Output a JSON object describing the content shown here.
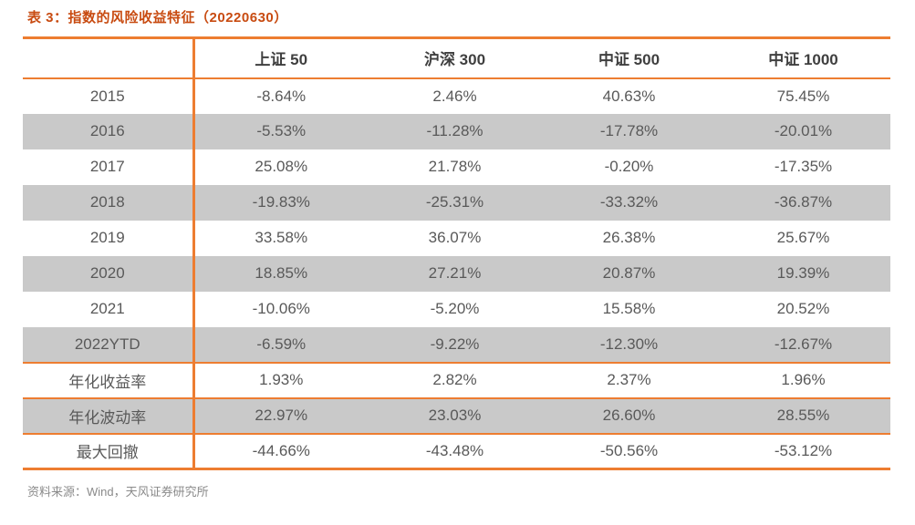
{
  "title": "表 3：指数的风险收益特征（20220630）",
  "source": "资料来源：Wind，天风证券研究所",
  "colors": {
    "accent_orange": "#ed7d31",
    "title_text": "#c84b11",
    "stripe_gray": "#c9c9c9",
    "cell_text": "#595959",
    "header_text": "#3f3f3f",
    "source_text": "#8a8a8a"
  },
  "table": {
    "column_headers": [
      "",
      "上证 50",
      "沪深 300",
      "中证 500",
      "中证 1000"
    ],
    "rows": [
      {
        "label": "2015",
        "values": [
          "-8.64%",
          "2.46%",
          "40.63%",
          "75.45%"
        ]
      },
      {
        "label": "2016",
        "values": [
          "-5.53%",
          "-11.28%",
          "-17.78%",
          "-20.01%"
        ]
      },
      {
        "label": "2017",
        "values": [
          "25.08%",
          "21.78%",
          "-0.20%",
          "-17.35%"
        ]
      },
      {
        "label": "2018",
        "values": [
          "-19.83%",
          "-25.31%",
          "-33.32%",
          "-36.87%"
        ]
      },
      {
        "label": "2019",
        "values": [
          "33.58%",
          "36.07%",
          "26.38%",
          "25.67%"
        ]
      },
      {
        "label": "2020",
        "values": [
          "18.85%",
          "27.21%",
          "20.87%",
          "19.39%"
        ]
      },
      {
        "label": "2021",
        "values": [
          "-10.06%",
          "-5.20%",
          "15.58%",
          "20.52%"
        ]
      },
      {
        "label": "2022YTD",
        "values": [
          "-6.59%",
          "-9.22%",
          "-12.30%",
          "-12.67%"
        ]
      },
      {
        "label": "年化收益率",
        "values": [
          "1.93%",
          "2.82%",
          "2.37%",
          "1.96%"
        ]
      },
      {
        "label": "年化波动率",
        "values": [
          "22.97%",
          "23.03%",
          "26.60%",
          "28.55%"
        ]
      },
      {
        "label": "最大回撤",
        "values": [
          "-44.66%",
          "-43.48%",
          "-50.56%",
          "-53.12%"
        ]
      }
    ]
  }
}
